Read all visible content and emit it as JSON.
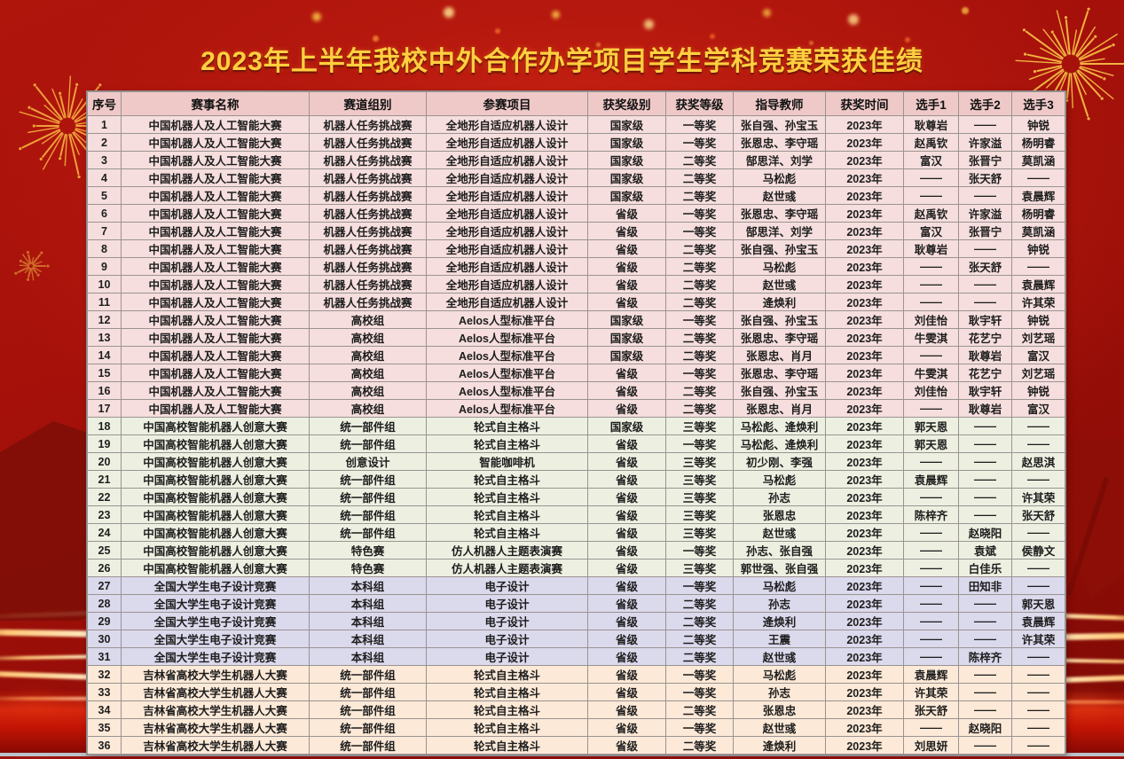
{
  "title": "2023年上半年我校中外合作办学项目学生学科竞赛荣获佳绩",
  "table": {
    "columns": [
      "序号",
      "赛事名称",
      "赛道组别",
      "参赛项目",
      "获奖级别",
      "获奖等级",
      "指导教师",
      "获奖时间",
      "选手1",
      "选手2",
      "选手3"
    ],
    "rows": [
      [
        "1",
        "中国机器人及人工智能大赛",
        "机器人任务挑战赛",
        "全地形自适应机器人设计",
        "国家级",
        "一等奖",
        "张自强、孙宝玉",
        "2023年",
        "耿尊岩",
        "——",
        "钟锐"
      ],
      [
        "2",
        "中国机器人及人工智能大赛",
        "机器人任务挑战赛",
        "全地形自适应机器人设计",
        "国家级",
        "一等奖",
        "张恩忠、李守瑶",
        "2023年",
        "赵禹钦",
        "许家溢",
        "杨明睿"
      ],
      [
        "3",
        "中国机器人及人工智能大赛",
        "机器人任务挑战赛",
        "全地形自适应机器人设计",
        "国家级",
        "二等奖",
        "郜思洋、刘学",
        "2023年",
        "富汉",
        "张晋宁",
        "莫凯涵"
      ],
      [
        "4",
        "中国机器人及人工智能大赛",
        "机器人任务挑战赛",
        "全地形自适应机器人设计",
        "国家级",
        "二等奖",
        "马松彪",
        "2023年",
        "——",
        "张天舒",
        "——"
      ],
      [
        "5",
        "中国机器人及人工智能大赛",
        "机器人任务挑战赛",
        "全地形自适应机器人设计",
        "国家级",
        "二等奖",
        "赵世彧",
        "2023年",
        "——",
        "——",
        "袁晨辉"
      ],
      [
        "6",
        "中国机器人及人工智能大赛",
        "机器人任务挑战赛",
        "全地形自适应机器人设计",
        "省级",
        "一等奖",
        "张恩忠、李守瑶",
        "2023年",
        "赵禹钦",
        "许家溢",
        "杨明睿"
      ],
      [
        "7",
        "中国机器人及人工智能大赛",
        "机器人任务挑战赛",
        "全地形自适应机器人设计",
        "省级",
        "一等奖",
        "郜思洋、刘学",
        "2023年",
        "富汉",
        "张晋宁",
        "莫凯涵"
      ],
      [
        "8",
        "中国机器人及人工智能大赛",
        "机器人任务挑战赛",
        "全地形自适应机器人设计",
        "省级",
        "二等奖",
        "张自强、孙宝玉",
        "2023年",
        "耿尊岩",
        "——",
        "钟锐"
      ],
      [
        "9",
        "中国机器人及人工智能大赛",
        "机器人任务挑战赛",
        "全地形自适应机器人设计",
        "省级",
        "二等奖",
        "马松彪",
        "2023年",
        "——",
        "张天舒",
        "——"
      ],
      [
        "10",
        "中国机器人及人工智能大赛",
        "机器人任务挑战赛",
        "全地形自适应机器人设计",
        "省级",
        "二等奖",
        "赵世彧",
        "2023年",
        "——",
        "——",
        "袁晨辉"
      ],
      [
        "11",
        "中国机器人及人工智能大赛",
        "机器人任务挑战赛",
        "全地形自适应机器人设计",
        "省级",
        "二等奖",
        "逄焕利",
        "2023年",
        "——",
        "——",
        "许其荣"
      ],
      [
        "12",
        "中国机器人及人工智能大赛",
        "高校组",
        "Aelos人型标准平台",
        "国家级",
        "一等奖",
        "张自强、孙宝玉",
        "2023年",
        "刘佳怡",
        "耿宇轩",
        "钟锐"
      ],
      [
        "13",
        "中国机器人及人工智能大赛",
        "高校组",
        "Aelos人型标准平台",
        "国家级",
        "二等奖",
        "张恩忠、李守瑶",
        "2023年",
        "牛雯淇",
        "花艺宁",
        "刘艺瑶"
      ],
      [
        "14",
        "中国机器人及人工智能大赛",
        "高校组",
        "Aelos人型标准平台",
        "国家级",
        "二等奖",
        "张恩忠、肖月",
        "2023年",
        "——",
        "耿尊岩",
        "富汉"
      ],
      [
        "15",
        "中国机器人及人工智能大赛",
        "高校组",
        "Aelos人型标准平台",
        "省级",
        "一等奖",
        "张恩忠、李守瑶",
        "2023年",
        "牛雯淇",
        "花艺宁",
        "刘艺瑶"
      ],
      [
        "16",
        "中国机器人及人工智能大赛",
        "高校组",
        "Aelos人型标准平台",
        "省级",
        "二等奖",
        "张自强、孙宝玉",
        "2023年",
        "刘佳怡",
        "耿宇轩",
        "钟锐"
      ],
      [
        "17",
        "中国机器人及人工智能大赛",
        "高校组",
        "Aelos人型标准平台",
        "省级",
        "二等奖",
        "张恩忠、肖月",
        "2023年",
        "——",
        "耿尊岩",
        "富汉"
      ],
      [
        "18",
        "中国高校智能机器人创意大赛",
        "统一部件组",
        "轮式自主格斗",
        "国家级",
        "三等奖",
        "马松彪、逄焕利",
        "2023年",
        "郭天恩",
        "——",
        "——"
      ],
      [
        "19",
        "中国高校智能机器人创意大赛",
        "统一部件组",
        "轮式自主格斗",
        "省级",
        "一等奖",
        "马松彪、逄焕利",
        "2023年",
        "郭天恩",
        "——",
        "——"
      ],
      [
        "20",
        "中国高校智能机器人创意大赛",
        "创意设计",
        "智能咖啡机",
        "省级",
        "三等奖",
        "初少刚、李强",
        "2023年",
        "——",
        "——",
        "赵思淇"
      ],
      [
        "21",
        "中国高校智能机器人创意大赛",
        "统一部件组",
        "轮式自主格斗",
        "省级",
        "三等奖",
        "马松彪",
        "2023年",
        "袁晨辉",
        "——",
        "——"
      ],
      [
        "22",
        "中国高校智能机器人创意大赛",
        "统一部件组",
        "轮式自主格斗",
        "省级",
        "三等奖",
        "孙志",
        "2023年",
        "——",
        "——",
        "许其荣"
      ],
      [
        "23",
        "中国高校智能机器人创意大赛",
        "统一部件组",
        "轮式自主格斗",
        "省级",
        "三等奖",
        "张恩忠",
        "2023年",
        "陈梓齐",
        "——",
        "张天舒"
      ],
      [
        "24",
        "中国高校智能机器人创意大赛",
        "统一部件组",
        "轮式自主格斗",
        "省级",
        "三等奖",
        "赵世彧",
        "2023年",
        "——",
        "赵晓阳",
        "——"
      ],
      [
        "25",
        "中国高校智能机器人创意大赛",
        "特色赛",
        "仿人机器人主题表演赛",
        "省级",
        "一等奖",
        "孙志、张自强",
        "2023年",
        "——",
        "袁斌",
        "侯静文"
      ],
      [
        "26",
        "中国高校智能机器人创意大赛",
        "特色赛",
        "仿人机器人主题表演赛",
        "省级",
        "三等奖",
        "郭世强、张自强",
        "2023年",
        "——",
        "白佳乐",
        "——"
      ],
      [
        "27",
        "全国大学生电子设计竞赛",
        "本科组",
        "电子设计",
        "省级",
        "一等奖",
        "马松彪",
        "2023年",
        "——",
        "田知非",
        "——"
      ],
      [
        "28",
        "全国大学生电子设计竞赛",
        "本科组",
        "电子设计",
        "省级",
        "二等奖",
        "孙志",
        "2023年",
        "——",
        "——",
        "郭天恩"
      ],
      [
        "29",
        "全国大学生电子设计竞赛",
        "本科组",
        "电子设计",
        "省级",
        "二等奖",
        "逄焕利",
        "2023年",
        "——",
        "——",
        "袁晨辉"
      ],
      [
        "30",
        "全国大学生电子设计竞赛",
        "本科组",
        "电子设计",
        "省级",
        "二等奖",
        "王震",
        "2023年",
        "——",
        "——",
        "许其荣"
      ],
      [
        "31",
        "全国大学生电子设计竞赛",
        "本科组",
        "电子设计",
        "省级",
        "二等奖",
        "赵世彧",
        "2023年",
        "——",
        "陈梓齐",
        "——"
      ],
      [
        "32",
        "吉林省高校大学生机器人大赛",
        "统一部件组",
        "轮式自主格斗",
        "省级",
        "一等奖",
        "马松彪",
        "2023年",
        "袁晨辉",
        "——",
        "——"
      ],
      [
        "33",
        "吉林省高校大学生机器人大赛",
        "统一部件组",
        "轮式自主格斗",
        "省级",
        "一等奖",
        "孙志",
        "2023年",
        "许其荣",
        "——",
        "——"
      ],
      [
        "34",
        "吉林省高校大学生机器人大赛",
        "统一部件组",
        "轮式自主格斗",
        "省级",
        "二等奖",
        "张恩忠",
        "2023年",
        "张天舒",
        "——",
        "——"
      ],
      [
        "35",
        "吉林省高校大学生机器人大赛",
        "统一部件组",
        "轮式自主格斗",
        "省级",
        "一等奖",
        "赵世彧",
        "2023年",
        "——",
        "赵晓阳",
        "——"
      ],
      [
        "36",
        "吉林省高校大学生机器人大赛",
        "统一部件组",
        "轮式自主格斗",
        "省级",
        "二等奖",
        "逄焕利",
        "2023年",
        "刘思妍",
        "——",
        "——"
      ]
    ],
    "row_groups": [
      {
        "start": 1,
        "end": 17,
        "bg": "#f5dedd"
      },
      {
        "start": 18,
        "end": 26,
        "bg": "#edf0e1"
      },
      {
        "start": 27,
        "end": 31,
        "bg": "#dbd9ec"
      },
      {
        "start": 32,
        "end": 36,
        "bg": "#fce9d7"
      }
    ]
  },
  "colors": {
    "background_red": "#a5110a",
    "title_gold": "#ffcf3f",
    "header_bg": "#efc9c8",
    "border_gray": "#9a9392",
    "firework_gold": "#f5b73a"
  },
  "icons": [
    "firework-icon",
    "light-streak-icon",
    "bokeh-dot-icon",
    "palace-roof-silhouette-icon",
    "flag-silhouette-icon"
  ]
}
